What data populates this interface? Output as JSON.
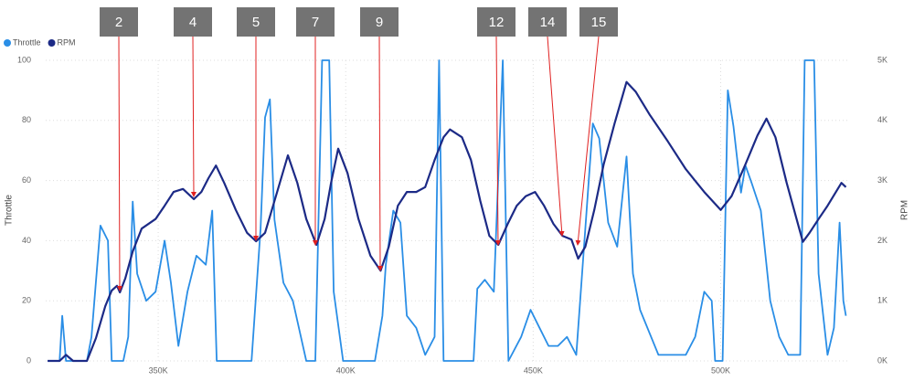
{
  "chart_data": {
    "type": "line",
    "y_label": "Throttle",
    "y2_label": "RPM",
    "grid": true,
    "legend": "top-left",
    "xlim": [
      320000,
      534000
    ],
    "xticks": [
      {
        "value": 350000,
        "label": "350K"
      },
      {
        "value": 400000,
        "label": "400K"
      },
      {
        "value": 450000,
        "label": "450K"
      },
      {
        "value": 500000,
        "label": "500K"
      }
    ],
    "ylim": [
      0,
      100
    ],
    "yticks": [
      0,
      20,
      40,
      60,
      80,
      100
    ],
    "y2lim": [
      0,
      5000
    ],
    "y2ticks": [
      {
        "value": 0,
        "label": "0K"
      },
      {
        "value": 1000,
        "label": "1K"
      },
      {
        "value": 2000,
        "label": "2K"
      },
      {
        "value": 3000,
        "label": "3K"
      },
      {
        "value": 4000,
        "label": "4K"
      },
      {
        "value": 5000,
        "label": "5K"
      }
    ],
    "annotations": [
      "2",
      "4",
      "5",
      "7",
      "9",
      "12",
      "14",
      "15"
    ],
    "series": [
      {
        "name": "Throttle",
        "color": "#2a8ee6",
        "x": [
          320500,
          323700,
          324400,
          325400,
          331000,
          332200,
          334600,
          336600,
          337600,
          340700,
          342000,
          343200,
          344400,
          346800,
          349300,
          351700,
          353400,
          355400,
          357800,
          360200,
          362700,
          364400,
          365600,
          371700,
          374900,
          377300,
          378500,
          379800,
          381000,
          383400,
          385900,
          389500,
          391900,
          393700,
          395600,
          396800,
          399300,
          407800,
          409800,
          410700,
          412700,
          414600,
          416300,
          418800,
          421200,
          423700,
          424900,
          426100,
          431000,
          434100,
          435100,
          437100,
          439500,
          441900,
          443400,
          446800,
          449300,
          451700,
          454100,
          456600,
          459000,
          461500,
          463900,
          465900,
          467600,
          470000,
          472400,
          474900,
          476600,
          478500,
          483400,
          490700,
          493200,
          495600,
          497600,
          498500,
          500500,
          501900,
          503400,
          505400,
          506600,
          508300,
          510700,
          513200,
          515600,
          518000,
          521200,
          522400,
          524900,
          526100,
          528500,
          530200,
          531700,
          532700,
          533400
        ],
        "values": [
          0,
          0,
          15,
          0,
          0,
          8,
          45,
          40,
          0,
          0,
          8,
          53,
          29,
          20,
          23,
          40,
          26,
          5,
          23,
          35,
          32,
          50,
          0,
          0,
          0,
          44,
          81,
          87,
          47,
          26,
          20,
          0,
          0,
          100,
          100,
          23,
          0,
          0,
          15,
          32,
          50,
          46,
          15,
          11,
          2,
          8,
          100,
          0,
          0,
          0,
          24,
          27,
          23,
          100,
          0,
          8,
          17,
          11,
          5,
          5,
          8,
          2,
          44,
          79,
          74,
          46,
          38,
          68,
          29,
          17,
          2,
          2,
          8,
          23,
          20,
          0,
          0,
          90,
          78,
          56,
          65,
          59,
          50,
          20,
          8,
          2,
          2,
          100,
          100,
          29,
          2,
          11,
          46,
          20,
          15
        ]
      },
      {
        "name": "RPM",
        "color": "#1c2a86",
        "axis": "y2",
        "x": [
          320500,
          323700,
          325400,
          327300,
          331000,
          333400,
          335900,
          337600,
          339000,
          339800,
          341200,
          343200,
          345600,
          349300,
          351700,
          354100,
          356600,
          359500,
          361500,
          363400,
          365400,
          367600,
          370700,
          373700,
          376100,
          378500,
          381000,
          384600,
          387100,
          389500,
          392200,
          394400,
          396100,
          398000,
          400500,
          403400,
          406600,
          409300,
          411500,
          413900,
          416300,
          418800,
          421200,
          423700,
          426100,
          427800,
          431000,
          433400,
          435900,
          438300,
          440700,
          443200,
          445600,
          448000,
          450500,
          452900,
          455400,
          457800,
          460200,
          462000,
          463900,
          466300,
          468800,
          471700,
          474900,
          477300,
          481000,
          485900,
          490700,
          495600,
          500000,
          502900,
          506600,
          509800,
          512200,
          514600,
          517600,
          521900,
          523700,
          526100,
          528500,
          532200,
          533400
        ],
        "values": [
          0,
          0,
          100,
          0,
          0,
          380,
          910,
          1170,
          1250,
          1140,
          1370,
          1820,
          2200,
          2360,
          2580,
          2810,
          2860,
          2690,
          2810,
          3040,
          3250,
          2960,
          2510,
          2130,
          1990,
          2130,
          2660,
          3420,
          2960,
          2360,
          1930,
          2360,
          2960,
          3530,
          3120,
          2360,
          1750,
          1500,
          1900,
          2580,
          2810,
          2810,
          2890,
          3340,
          3720,
          3850,
          3720,
          3340,
          2660,
          2080,
          1930,
          2280,
          2580,
          2740,
          2810,
          2580,
          2280,
          2080,
          2020,
          1700,
          1900,
          2510,
          3270,
          3950,
          4640,
          4480,
          4100,
          3650,
          3190,
          2810,
          2510,
          2740,
          3270,
          3750,
          4030,
          3720,
          2960,
          1980,
          2130,
          2360,
          2580,
          2960,
          2890
        ]
      }
    ]
  }
}
